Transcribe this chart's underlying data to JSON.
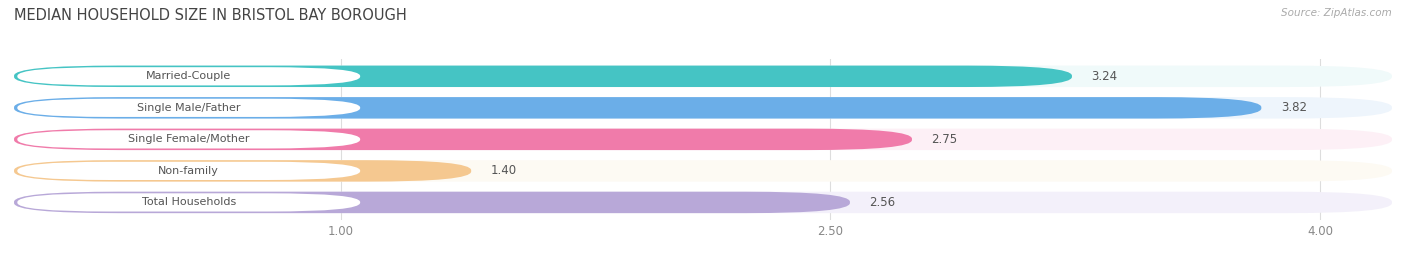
{
  "title": "MEDIAN HOUSEHOLD SIZE IN BRISTOL BAY BOROUGH",
  "source": "Source: ZipAtlas.com",
  "categories": [
    "Married-Couple",
    "Single Male/Father",
    "Single Female/Mother",
    "Non-family",
    "Total Households"
  ],
  "values": [
    3.24,
    3.82,
    2.75,
    1.4,
    2.56
  ],
  "bar_colors": [
    "#45C4C4",
    "#6BAEE8",
    "#F07BAA",
    "#F5C890",
    "#B8A8D8"
  ],
  "bg_colors": [
    "#F0FAFA",
    "#EEF5FC",
    "#FDF0F6",
    "#FDFAF3",
    "#F3F0FA"
  ],
  "xlim_min": 0,
  "xlim_max": 4.22,
  "xstart": 0.0,
  "xticks": [
    1.0,
    2.5,
    4.0
  ],
  "title_fontsize": 10.5,
  "label_fontsize": 8.0,
  "value_fontsize": 8.5,
  "background_color": "#ffffff",
  "label_bg_color": "#ffffff",
  "label_text_color": "#555555",
  "value_text_color": "#555555"
}
